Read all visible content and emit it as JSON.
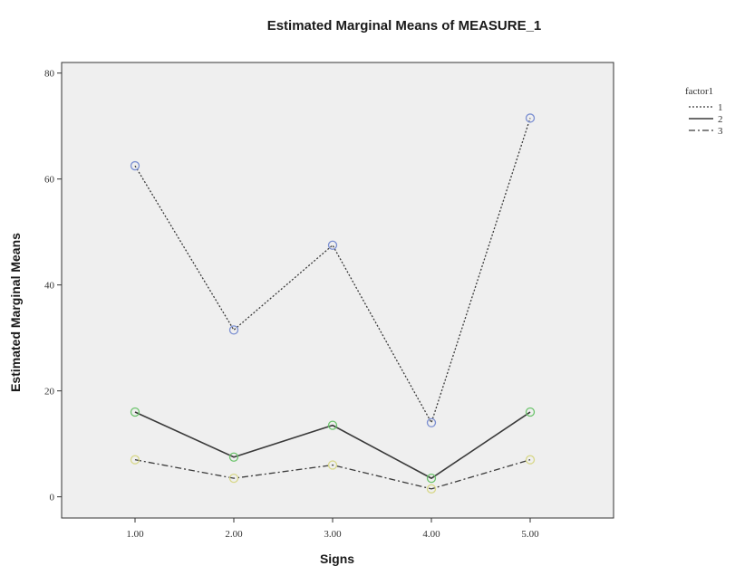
{
  "chart_data": {
    "type": "line",
    "title": "Estimated Marginal Means of MEASURE_1",
    "xlabel": "Signs",
    "ylabel": "Estimated Marginal Means",
    "categories": [
      "1.00",
      "2.00",
      "3.00",
      "4.00",
      "5.00"
    ],
    "ylim": [
      -4,
      82
    ],
    "yticks": [
      0,
      20,
      40,
      60,
      80
    ],
    "grid": false,
    "legend": {
      "title": "factor1",
      "placement": "right"
    },
    "plot_background": "#efefef",
    "series": [
      {
        "name": "1",
        "values": [
          62.5,
          31.5,
          47.5,
          14.0,
          71.5
        ],
        "line_style": "dotted",
        "marker_color": "#7b8fd1"
      },
      {
        "name": "2",
        "values": [
          16.0,
          7.5,
          13.5,
          3.5,
          16.0
        ],
        "line_style": "solid",
        "marker_color": "#6cc46c"
      },
      {
        "name": "3",
        "values": [
          7.0,
          3.5,
          6.0,
          1.5,
          7.0
        ],
        "line_style": "dash-dot",
        "marker_color": "#d8d88a"
      }
    ]
  }
}
